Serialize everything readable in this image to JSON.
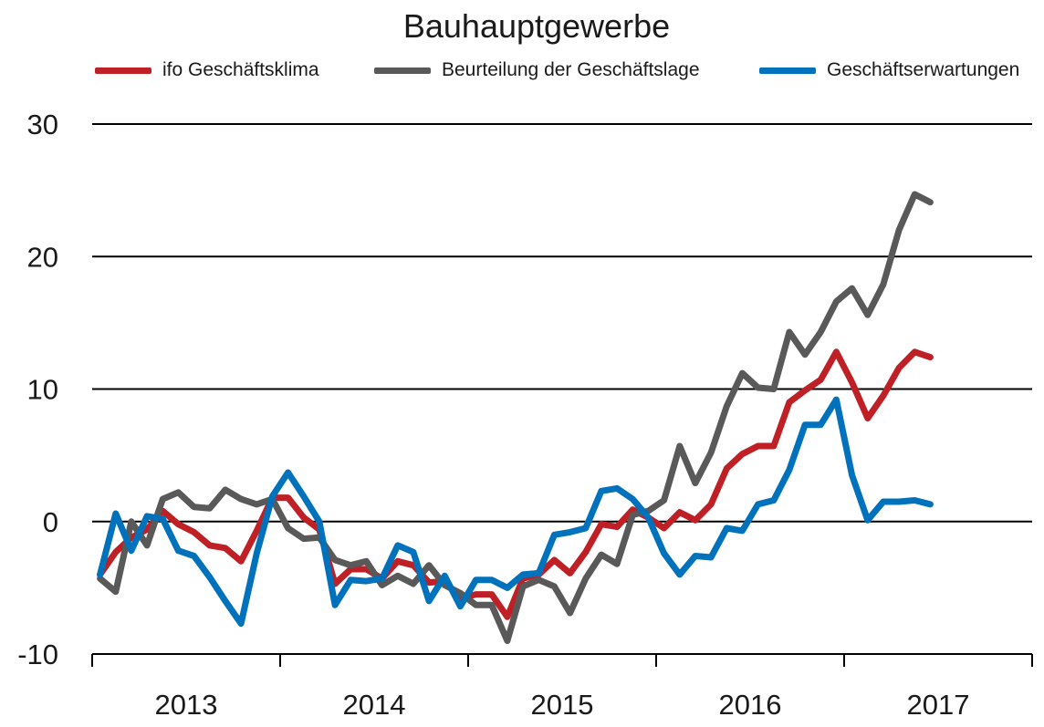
{
  "chart_data": {
    "type": "line",
    "title": "Bauhauptgewerbe",
    "xlabel": "",
    "ylabel": "",
    "ylim": [
      -10,
      30
    ],
    "yticks": [
      30,
      20,
      10,
      0,
      -10
    ],
    "year_labels": [
      "2013",
      "2014",
      "2015",
      "2016",
      "2017"
    ],
    "x_start": "2013-01",
    "x_end": "2017-12",
    "grid": true,
    "legend_position": "top",
    "months": [
      "2013-01",
      "2013-02",
      "2013-03",
      "2013-04",
      "2013-05",
      "2013-06",
      "2013-07",
      "2013-08",
      "2013-09",
      "2013-10",
      "2013-11",
      "2013-12",
      "2014-01",
      "2014-02",
      "2014-03",
      "2014-04",
      "2014-05",
      "2014-06",
      "2014-07",
      "2014-08",
      "2014-09",
      "2014-10",
      "2014-11",
      "2014-12",
      "2015-01",
      "2015-02",
      "2015-03",
      "2015-04",
      "2015-05",
      "2015-06",
      "2015-07",
      "2015-08",
      "2015-09",
      "2015-10",
      "2015-11",
      "2015-12",
      "2016-01",
      "2016-02",
      "2016-03",
      "2016-04",
      "2016-05",
      "2016-06",
      "2016-07",
      "2016-08",
      "2016-09",
      "2016-10",
      "2016-11",
      "2016-12",
      "2017-01",
      "2017-02",
      "2017-03",
      "2017-04",
      "2017-05",
      "2017-06"
    ],
    "series": [
      {
        "name": "ifo Geschäftsklima",
        "color": "#bf2026",
        "values": [
          -4.0,
          -2.3,
          -1.2,
          -0.6,
          0.8,
          -0.2,
          -0.8,
          -1.8,
          -2.0,
          -3.0,
          -0.7,
          1.8,
          1.8,
          0.3,
          -0.6,
          -4.7,
          -3.6,
          -3.6,
          -4.3,
          -3.0,
          -3.3,
          -4.6,
          -4.5,
          -5.8,
          -5.5,
          -5.5,
          -7.2,
          -4.3,
          -4.0,
          -2.9,
          -3.9,
          -2.3,
          -0.2,
          -0.4,
          0.9,
          0.3,
          -0.5,
          0.7,
          0.1,
          1.3,
          4.0,
          5.1,
          5.7,
          5.7,
          9.0,
          9.9,
          10.7,
          12.8,
          10.5,
          7.8,
          9.5,
          11.6,
          12.8,
          12.4
        ]
      },
      {
        "name": "Beurteilung der Geschäftslage",
        "color": "#595959",
        "values": [
          -4.3,
          -5.3,
          0.0,
          -1.8,
          1.7,
          2.2,
          1.1,
          1.0,
          2.4,
          1.7,
          1.3,
          1.7,
          -0.5,
          -1.3,
          -1.2,
          -2.9,
          -3.3,
          -3.0,
          -4.8,
          -4.1,
          -4.7,
          -3.3,
          -4.8,
          -5.4,
          -6.3,
          -6.3,
          -9.0,
          -4.9,
          -4.4,
          -4.9,
          -6.9,
          -4.3,
          -2.5,
          -3.2,
          0.5,
          0.8,
          1.6,
          5.7,
          2.9,
          5.2,
          8.7,
          11.2,
          10.1,
          10.0,
          14.3,
          12.6,
          14.3,
          16.6,
          17.6,
          15.6,
          17.9,
          22.0,
          24.7,
          24.1
        ]
      },
      {
        "name": "Geschäftserwartungen",
        "color": "#0072bc",
        "values": [
          -4.0,
          0.6,
          -2.2,
          0.4,
          0.2,
          -2.2,
          -2.6,
          -4.2,
          -6.0,
          -7.7,
          -2.4,
          1.9,
          3.7,
          1.9,
          0.0,
          -6.3,
          -4.4,
          -4.5,
          -4.3,
          -1.8,
          -2.3,
          -6.0,
          -4.1,
          -6.4,
          -4.4,
          -4.4,
          -5.0,
          -4.0,
          -3.9,
          -1.0,
          -0.8,
          -0.5,
          2.3,
          2.5,
          1.7,
          0.3,
          -2.4,
          -4.0,
          -2.6,
          -2.7,
          -0.5,
          -0.7,
          1.3,
          1.6,
          3.9,
          7.3,
          7.3,
          9.2,
          3.5,
          0.1,
          1.5,
          1.5,
          1.6,
          1.3
        ]
      }
    ]
  }
}
